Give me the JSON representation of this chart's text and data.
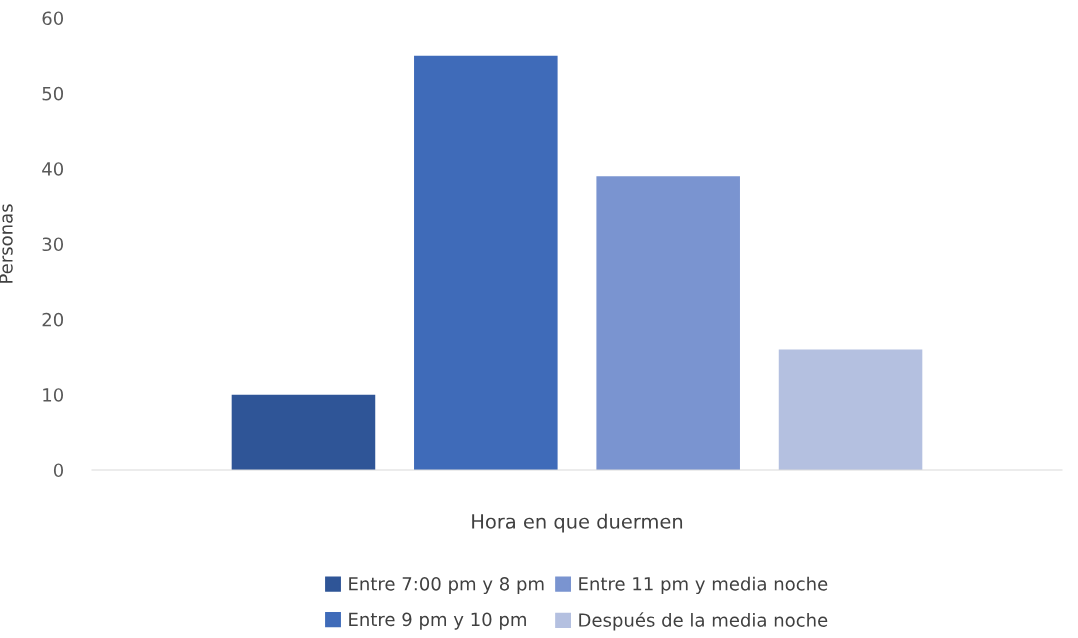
{
  "chart_data": {
    "type": "bar",
    "xlabel": "Hora en que duermen",
    "ylabel": "Personas",
    "categories": [
      null
    ],
    "series": [
      {
        "name": "Entre 7:00 pm y 8 pm",
        "color": "#2f5597",
        "values": [
          10
        ]
      },
      {
        "name": "Entre 9 pm y 10 pm",
        "color": "#3f6bb9",
        "values": [
          55
        ]
      },
      {
        "name": "Entre 11 pm y media noche",
        "color": "#7a94d0",
        "values": [
          39
        ]
      },
      {
        "name": "Después de la media noche",
        "color": "#b4c0e0",
        "values": [
          16
        ]
      }
    ],
    "ylim": [
      0,
      60
    ],
    "yticks": [
      0,
      10,
      20,
      30,
      40,
      50,
      60
    ],
    "grid": false,
    "legend": "bottom"
  }
}
